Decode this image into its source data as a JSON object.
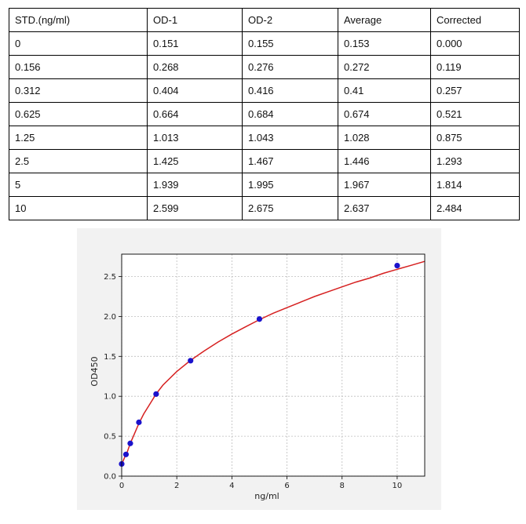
{
  "table": {
    "headers": [
      "STD.(ng/ml)",
      "OD-1",
      "OD-2",
      "Average",
      "Corrected"
    ],
    "rows": [
      [
        "0",
        "0.151",
        "0.155",
        "0.153",
        "0.000"
      ],
      [
        "0.156",
        "0.268",
        "0.276",
        "0.272",
        "0.119"
      ],
      [
        "0.312",
        "0.404",
        "0.416",
        "0.41",
        "0.257"
      ],
      [
        "0.625",
        "0.664",
        "0.684",
        "0.674",
        "0.521"
      ],
      [
        "1.25",
        "1.013",
        "1.043",
        "1.028",
        "0.875"
      ],
      [
        "2.5",
        "1.425",
        "1.467",
        "1.446",
        "1.293"
      ],
      [
        "5",
        "1.939",
        "1.995",
        "1.967",
        "1.814"
      ],
      [
        "10",
        "2.599",
        "2.675",
        "2.637",
        "2.484"
      ]
    ]
  },
  "chart_data": {
    "type": "scatter",
    "xlabel": "ng/ml",
    "ylabel": "OD450",
    "xlim": [
      0,
      11
    ],
    "ylim": [
      0,
      2.5
    ],
    "x_ticks": [
      "0",
      "2",
      "4",
      "6",
      "8",
      "10"
    ],
    "y_ticks": [
      "0.0",
      "0.5",
      "1.0",
      "1.5",
      "2.0",
      "2.5"
    ],
    "grid": true,
    "points": {
      "x": [
        0,
        0.156,
        0.312,
        0.625,
        1.25,
        2.5,
        5,
        10
      ],
      "y": [
        0.153,
        0.272,
        0.41,
        0.674,
        1.028,
        1.446,
        1.967,
        2.637
      ],
      "color": "#1a12cc"
    },
    "fit_curve": {
      "x": [
        0,
        0.05,
        0.1,
        0.156,
        0.2,
        0.312,
        0.45,
        0.625,
        0.8,
        1.0,
        1.25,
        1.5,
        2.0,
        2.5,
        3.0,
        3.5,
        4.0,
        4.5,
        5.0,
        5.5,
        6.0,
        6.5,
        7.0,
        7.5,
        8.0,
        8.5,
        9.0,
        9.5,
        10.0,
        10.5,
        11.0
      ],
      "y": [
        0.15,
        0.19,
        0.23,
        0.272,
        0.3,
        0.41,
        0.52,
        0.66,
        0.78,
        0.89,
        1.03,
        1.14,
        1.31,
        1.45,
        1.57,
        1.68,
        1.78,
        1.87,
        1.96,
        2.04,
        2.11,
        2.18,
        2.25,
        2.31,
        2.37,
        2.43,
        2.48,
        2.54,
        2.59,
        2.64,
        2.69
      ],
      "color": "#d62020"
    }
  }
}
